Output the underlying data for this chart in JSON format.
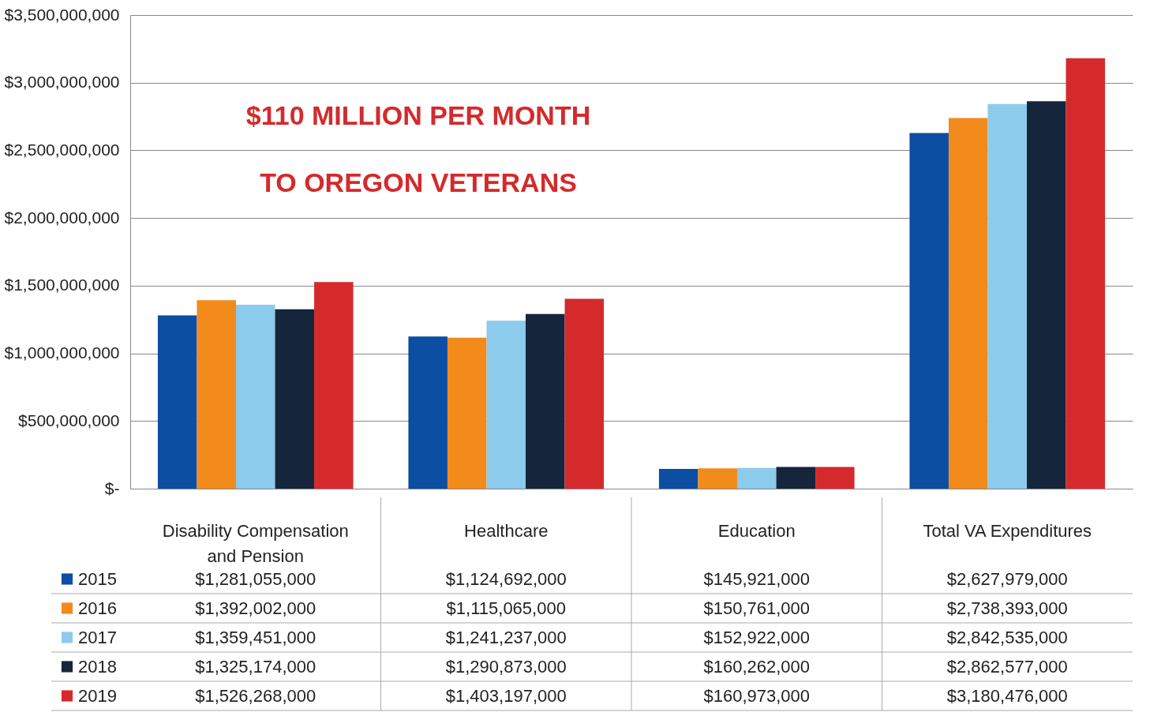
{
  "chart_data": {
    "type": "bar",
    "categories": [
      "Disability Compensation and Pension",
      "Healthcare",
      "Education",
      "Total VA Expenditures"
    ],
    "series": [
      {
        "name": "2015",
        "color": "#0b4ea2",
        "values": [
          1281055000,
          1124692000,
          145921000,
          2627979000
        ],
        "value_labels": [
          "$1,281,055,000",
          "$1,124,692,000",
          "$145,921,000",
          "$2,627,979,000"
        ]
      },
      {
        "name": "2016",
        "color": "#f28a1c",
        "values": [
          1392002000,
          1115065000,
          150761000,
          2738393000
        ],
        "value_labels": [
          "$1,392,002,000",
          "$1,115,065,000",
          "$150,761,000",
          "$2,738,393,000"
        ]
      },
      {
        "name": "2017",
        "color": "#8ccbec",
        "values": [
          1359451000,
          1241237000,
          152922000,
          2842535000
        ],
        "value_labels": [
          "$1,359,451,000",
          "$1,241,237,000",
          "$152,922,000",
          "$2,842,535,000"
        ]
      },
      {
        "name": "2018",
        "color": "#15253c",
        "values": [
          1325174000,
          1290873000,
          160262000,
          2862577000
        ],
        "value_labels": [
          "$1,325,174,000",
          "$1,290,873,000",
          "$160,262,000",
          "$2,862,577,000"
        ]
      },
      {
        "name": "2019",
        "color": "#d42a2c",
        "values": [
          1526268000,
          1403197000,
          160973000,
          3180476000
        ],
        "value_labels": [
          "$1,526,268,000",
          "$1,403,197,000",
          "$160,973,000",
          "$3,180,476,000"
        ]
      }
    ],
    "ylim": [
      0,
      3500000000
    ],
    "yticks": [
      {
        "value": 0,
        "label": "$-"
      },
      {
        "value": 500000000,
        "label": "$500,000,000"
      },
      {
        "value": 1000000000,
        "label": "$1,000,000,000"
      },
      {
        "value": 1500000000,
        "label": "$1,500,000,000"
      },
      {
        "value": 2000000000,
        "label": "$2,000,000,000"
      },
      {
        "value": 2500000000,
        "label": "$2,500,000,000"
      },
      {
        "value": 3000000000,
        "label": "$3,000,000,000"
      },
      {
        "value": 3500000000,
        "label": "$3,500,000,000"
      }
    ],
    "grid": "y",
    "legend": "bottom left",
    "annotations": [
      "$110 MILLION PER MONTH TO OREGON VETERANS"
    ]
  }
}
